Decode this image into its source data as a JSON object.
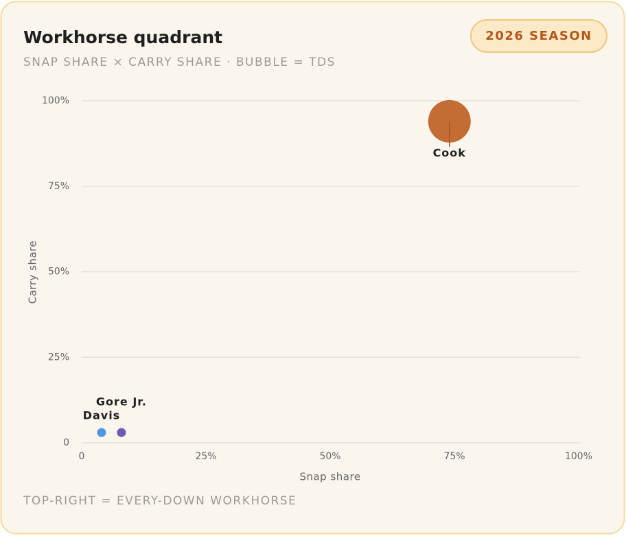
{
  "chart_data": {
    "type": "bubble",
    "title": "Workhorse quadrant",
    "subtitle": "SNAP SHARE × CARRY SHARE · BUBBLE = TDS",
    "badge": "2026 SEASON",
    "footnote": "TOP-RIGHT = EVERY-DOWN WORKHORSE",
    "x_label": "Snap share",
    "y_label": "Carry share",
    "xlim": [
      0,
      100
    ],
    "ylim": [
      0,
      100
    ],
    "xticks": [
      0,
      {
        "value": 25,
        "label": "25%"
      },
      {
        "value": 50,
        "label": "50%"
      },
      {
        "value": 75,
        "label": "75%"
      },
      {
        "value": 100,
        "label": "100%"
      }
    ],
    "yticks": [
      0,
      {
        "value": 25,
        "label": "25%"
      },
      {
        "value": 50,
        "label": "50%"
      },
      {
        "value": 75,
        "label": "75%"
      },
      {
        "value": 100,
        "label": "100%"
      }
    ],
    "grid": true,
    "series": [
      {
        "name": "Cook",
        "color": "#c0652a",
        "x": [
          74
        ],
        "values": [
          94
        ],
        "sizes": [
          16
        ]
      },
      {
        "name": "Davis",
        "color": "#4a8fdc",
        "x": [
          4
        ],
        "values": [
          3
        ],
        "sizes": [
          0
        ]
      },
      {
        "name": "Gore Jr.",
        "color": "#6a4fb0",
        "x": [
          8
        ],
        "values": [
          3
        ],
        "sizes": [
          0
        ]
      }
    ]
  }
}
